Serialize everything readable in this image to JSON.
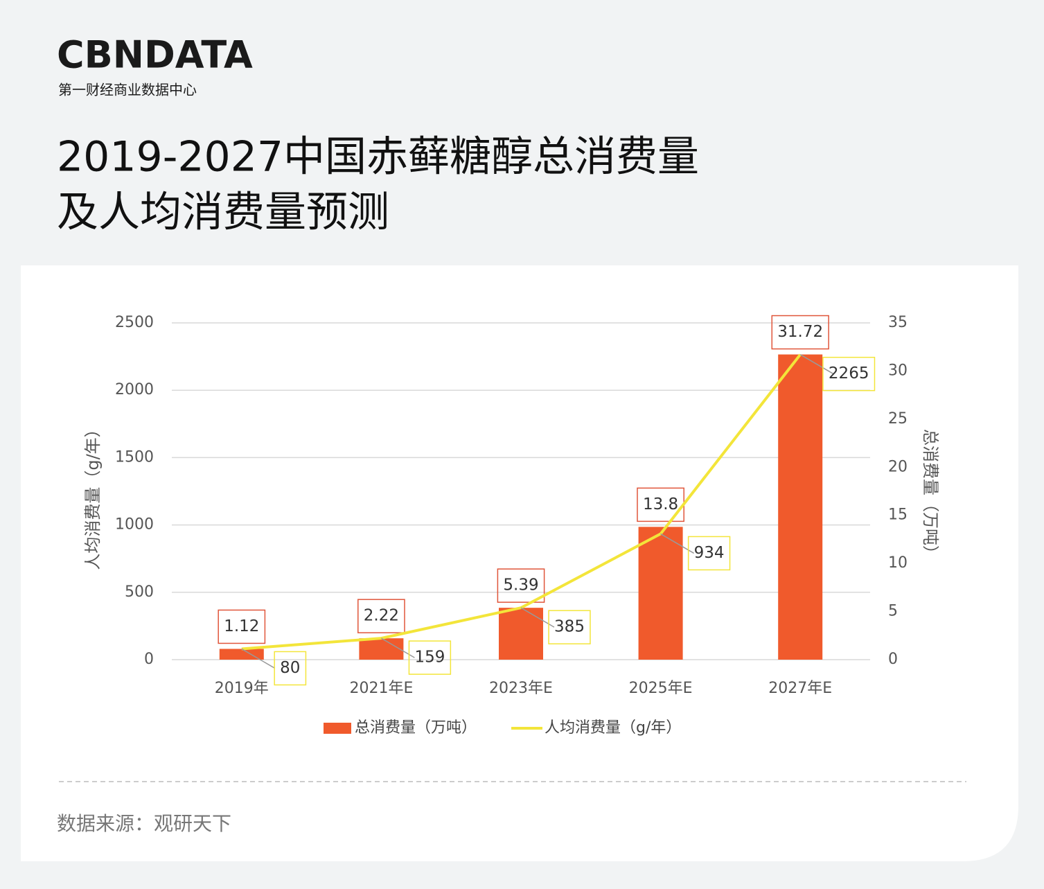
{
  "header": {
    "logo": "CBNDATA",
    "logo_subtitle": "第一财经商业数据中心"
  },
  "chart_data": {
    "type": "combo",
    "title_lines": [
      "2019-2027中国赤藓糖醇总消费量",
      "及人均消费量预测"
    ],
    "y_label": "人均消费量（g/年）",
    "y2_label": "总消费量（万吨）",
    "categories": [
      "2019年",
      "2021年E",
      "2023年E",
      "2025年E",
      "2027年E"
    ],
    "series": [
      {
        "name": "总消费量（万吨）",
        "type": "bar",
        "axis": "y2",
        "color": "#f05a2c",
        "values": [
          1.12,
          2.22,
          5.39,
          13.8,
          31.72
        ]
      },
      {
        "name": "人均消费量（g/年）",
        "type": "line",
        "axis": "y",
        "color": "#f3e53a",
        "values": [
          80,
          159,
          385,
          934,
          2265
        ]
      }
    ],
    "ylim": [
      0,
      2500
    ],
    "yticks": [
      0,
      500,
      1000,
      1500,
      2000,
      2500
    ],
    "y2lim": [
      0,
      35
    ],
    "y2ticks": [
      0,
      5,
      10,
      15,
      20,
      25,
      30,
      35
    ],
    "grid": true,
    "legend": "bottom"
  },
  "footer": {
    "source": "数据来源：观研天下"
  }
}
